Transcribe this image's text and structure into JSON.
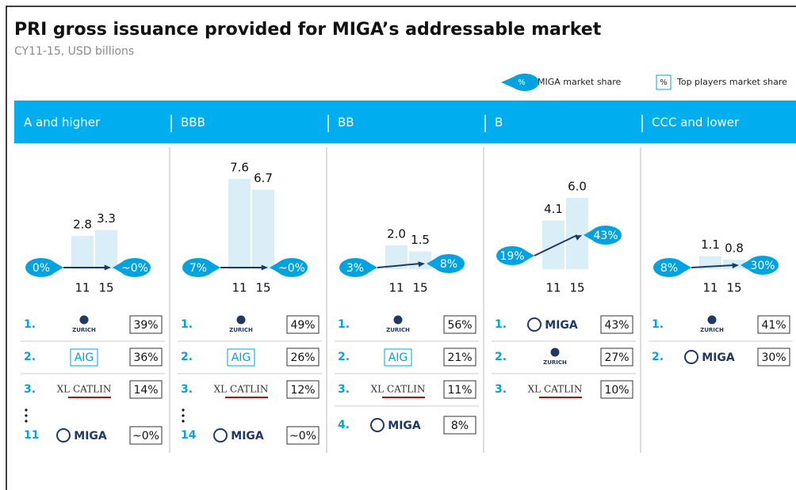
{
  "header": {
    "title": "PRI gross issuance provided for MIGA’s addressable market",
    "subtitle": "CY11-15, USD billions"
  },
  "legend": [
    {
      "symbol": "%",
      "label": "MIGA market share"
    },
    {
      "symbol": "%",
      "label": "Top players market share"
    }
  ],
  "columns": [
    {
      "label": "A and higher",
      "categories": [
        "11",
        "15"
      ],
      "values": [
        2.8,
        3.3
      ],
      "value_labels": [
        "2.8",
        "3.3"
      ],
      "share_start": "0%",
      "share_end": "~0%",
      "players": [
        {
          "rank": "1.",
          "name": "ZURICH",
          "share": "39%"
        },
        {
          "rank": "2.",
          "name": "AIG",
          "share": "36%"
        },
        {
          "rank": "3.",
          "name": "XL CATLIN",
          "share": "14%"
        },
        {
          "rank": "11",
          "name": "MIGA",
          "share": "~0%"
        }
      ]
    },
    {
      "label": "BBB",
      "categories": [
        "11",
        "15"
      ],
      "values": [
        7.6,
        6.7
      ],
      "value_labels": [
        "7.6",
        "6.7"
      ],
      "share_start": "7%",
      "share_end": "~0%",
      "players": [
        {
          "rank": "1.",
          "name": "ZURICH",
          "share": "49%"
        },
        {
          "rank": "2.",
          "name": "AIG",
          "share": "26%"
        },
        {
          "rank": "3.",
          "name": "XL CATLIN",
          "share": "12%"
        },
        {
          "rank": "14",
          "name": "MIGA",
          "share": "~0%"
        }
      ]
    },
    {
      "label": "BB",
      "categories": [
        "11",
        "15"
      ],
      "values": [
        2.0,
        1.5
      ],
      "value_labels": [
        "2.0",
        "1.5"
      ],
      "share_start": "3%",
      "share_end": "8%",
      "players": [
        {
          "rank": "1.",
          "name": "ZURICH",
          "share": "56%"
        },
        {
          "rank": "2.",
          "name": "AIG",
          "share": "21%"
        },
        {
          "rank": "3.",
          "name": "XL CATLIN",
          "share": "11%"
        },
        {
          "rank": "4.",
          "name": "MIGA",
          "share": "8%"
        }
      ]
    },
    {
      "label": "B",
      "categories": [
        "11",
        "15"
      ],
      "values": [
        4.1,
        6.0
      ],
      "value_labels": [
        "4.1",
        "6.0"
      ],
      "share_start": "19%",
      "share_end": "43%",
      "players": [
        {
          "rank": "1.",
          "name": "MIGA",
          "share": "43%"
        },
        {
          "rank": "2.",
          "name": "ZURICH",
          "share": "27%"
        },
        {
          "rank": "3.",
          "name": "XL CATLIN",
          "share": "10%"
        }
      ]
    },
    {
      "label": "CCC and lower",
      "categories": [
        "11",
        "15"
      ],
      "values": [
        1.1,
        0.8
      ],
      "value_labels": [
        "1.1",
        "0.8"
      ],
      "share_start": "8%",
      "share_end": "30%",
      "players": [
        {
          "rank": "1.",
          "name": "ZURICH",
          "share": "41%"
        },
        {
          "rank": "2.",
          "name": "MIGA",
          "share": "30%"
        }
      ]
    }
  ]
}
